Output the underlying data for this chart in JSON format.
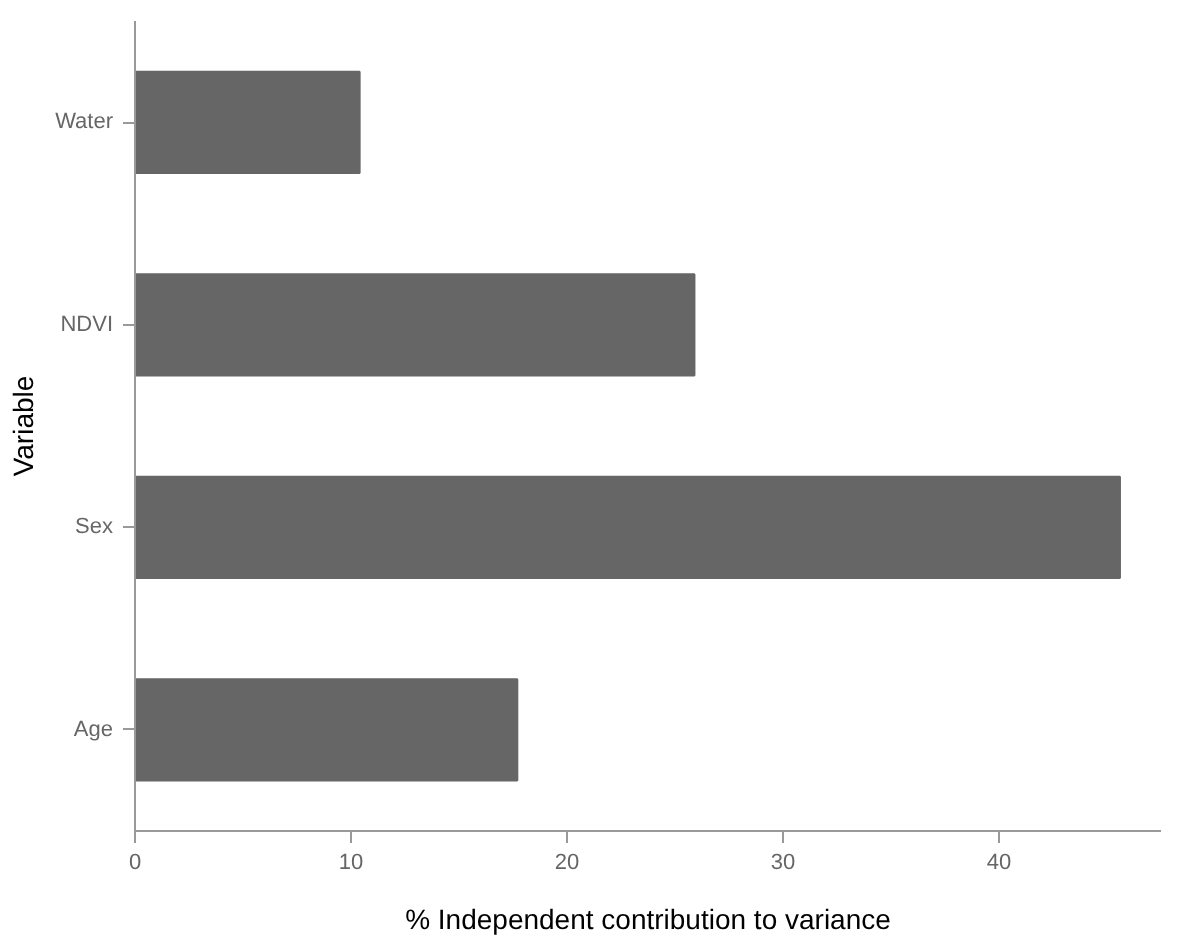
{
  "chart_data": {
    "type": "bar",
    "orientation": "horizontal",
    "categories": [
      "Water",
      "NDVI",
      "Sex",
      "Age"
    ],
    "values": [
      10.4,
      25.9,
      45.6,
      17.7
    ],
    "color": "#666666",
    "xlabel": "% Independent contribution to variance",
    "ylabel": "Variable",
    "xlim": [
      0,
      47.5
    ],
    "xticks": [
      0,
      10,
      20,
      30,
      40
    ],
    "grid": false
  }
}
